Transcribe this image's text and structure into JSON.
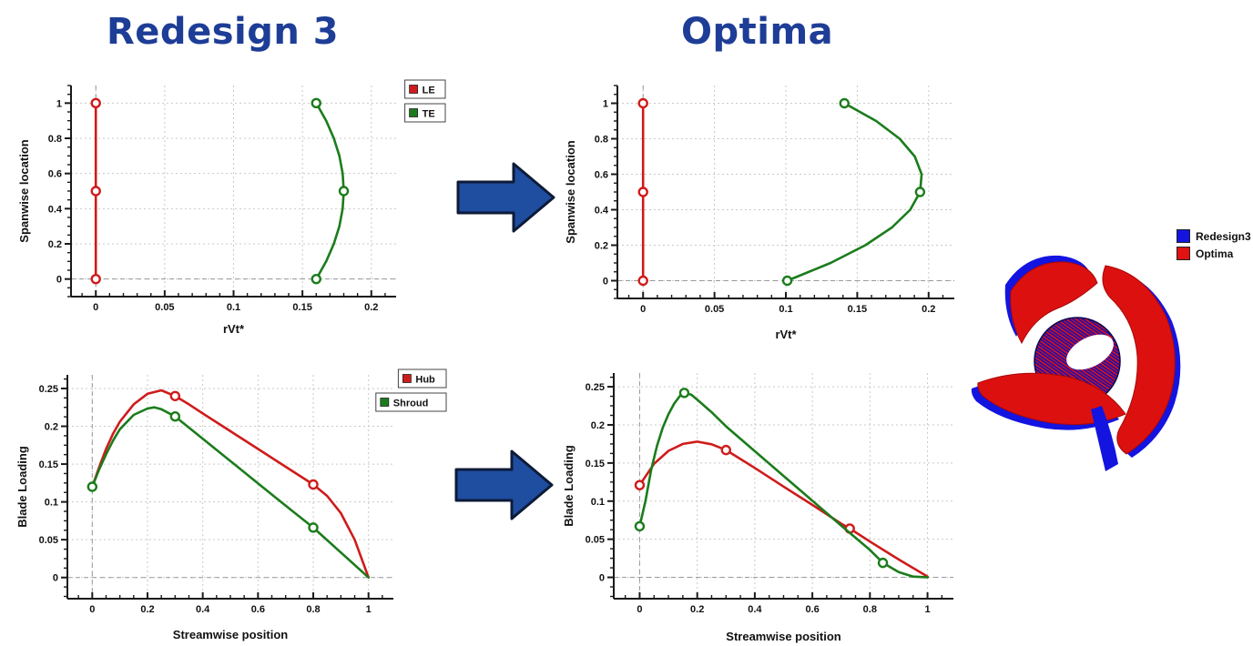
{
  "titles": {
    "left": "Redesign 3",
    "right": "Optima",
    "color": "#1d3d96"
  },
  "arrows": {
    "fill": "#1f4da0",
    "stroke": "#0d1b38"
  },
  "chart_style": {
    "axis_color": "#1a1a1a",
    "grid_dot_color": "#c9c9c9",
    "grid_dash_color": "#999999",
    "tick_label_color": "#111111",
    "marker_fill": "#ffffff",
    "legend_border": "#444444",
    "legend_bg": "#ffffff"
  },
  "chart_data": [
    {
      "id": "redesign3-spanwise",
      "type": "line",
      "title": "",
      "xlabel": "rVt*",
      "ylabel": "Spanwise location",
      "xlim": [
        -0.018,
        0.218
      ],
      "ylim": [
        -0.1,
        1.1
      ],
      "xticks": {
        "major": [
          0,
          0.05,
          0.1,
          0.15,
          0.2
        ],
        "labels": [
          "0",
          "0.05",
          "0.1",
          "0.15",
          "0.2"
        ],
        "minor_step": 0.01
      },
      "yticks": {
        "major": [
          0,
          0.2,
          0.4,
          0.6,
          0.8,
          1
        ],
        "labels": [
          "0",
          "0.2",
          "0.4",
          "0.6",
          "0.8",
          "1"
        ],
        "minor_step": 0.05
      },
      "dashed_x": [
        0
      ],
      "dashed_y": [
        0
      ],
      "legend": [
        {
          "label": "LE",
          "color": "#cf1b1b"
        },
        {
          "label": "TE",
          "color": "#1b7c1b"
        }
      ],
      "series": [
        {
          "name": "LE",
          "color": "#cf1b1b",
          "curve": [
            [
              0,
              0
            ],
            [
              0,
              0.5
            ],
            [
              0,
              1
            ]
          ],
          "markers": [
            [
              0,
              0
            ],
            [
              0,
              0.5
            ],
            [
              0,
              1
            ]
          ]
        },
        {
          "name": "TE",
          "color": "#1b7c1b",
          "curve": [
            [
              0.16,
              0
            ],
            [
              0.1672,
              0.1
            ],
            [
              0.1728,
              0.2
            ],
            [
              0.1768,
              0.3
            ],
            [
              0.1792,
              0.4
            ],
            [
              0.18,
              0.5
            ],
            [
              0.1792,
              0.6
            ],
            [
              0.1768,
              0.7
            ],
            [
              0.1728,
              0.8
            ],
            [
              0.1672,
              0.9
            ],
            [
              0.16,
              1
            ]
          ],
          "markers": [
            [
              0.16,
              0
            ],
            [
              0.18,
              0.5
            ],
            [
              0.16,
              1
            ]
          ]
        }
      ]
    },
    {
      "id": "optima-spanwise",
      "type": "line",
      "title": "",
      "xlabel": "rVt*",
      "ylabel": "Spanwise location",
      "xlim": [
        -0.018,
        0.218
      ],
      "ylim": [
        -0.1,
        1.1
      ],
      "xticks": {
        "major": [
          0,
          0.05,
          0.1,
          0.15,
          0.2
        ],
        "labels": [
          "0",
          "0.05",
          "0.1",
          "0.15",
          "0.2"
        ],
        "minor_step": 0.01
      },
      "yticks": {
        "major": [
          0,
          0.2,
          0.4,
          0.6,
          0.8,
          1
        ],
        "labels": [
          "0",
          "0.2",
          "0.4",
          "0.6",
          "0.8",
          "1"
        ],
        "minor_step": 0.05
      },
      "dashed_x": [
        0
      ],
      "dashed_y": [
        0
      ],
      "legend": null,
      "series": [
        {
          "name": "LE",
          "color": "#cf1b1b",
          "curve": [
            [
              0,
              0
            ],
            [
              0,
              0.5
            ],
            [
              0,
              1
            ]
          ],
          "markers": [
            [
              0,
              0
            ],
            [
              0,
              0.5
            ],
            [
              0,
              1
            ]
          ]
        },
        {
          "name": "TE",
          "color": "#1b7c1b",
          "curve": [
            [
              0.101,
              0
            ],
            [
              0.1313,
              0.1
            ],
            [
              0.1557,
              0.2
            ],
            [
              0.1743,
              0.3
            ],
            [
              0.1871,
              0.4
            ],
            [
              0.194,
              0.5
            ],
            [
              0.1951,
              0.6
            ],
            [
              0.1903,
              0.7
            ],
            [
              0.1797,
              0.8
            ],
            [
              0.1633,
              0.9
            ],
            [
              0.141,
              1
            ]
          ],
          "markers": [
            [
              0.101,
              0
            ],
            [
              0.194,
              0.5
            ],
            [
              0.141,
              1
            ]
          ]
        }
      ]
    },
    {
      "id": "redesign3-loading",
      "type": "line",
      "title": "",
      "xlabel": "Streamwise position",
      "ylabel": "Blade Loading",
      "xlim": [
        -0.09,
        1.09
      ],
      "ylim": [
        -0.028,
        0.268
      ],
      "xticks": {
        "major": [
          0,
          0.2,
          0.4,
          0.6,
          0.8,
          1
        ],
        "labels": [
          "0",
          "0.2",
          "0.4",
          "0.6",
          "0.8",
          "1"
        ],
        "minor_step": 0.05
      },
      "yticks": {
        "major": [
          0,
          0.05,
          0.1,
          0.15,
          0.2,
          0.25
        ],
        "labels": [
          "0",
          "0.05",
          "0.1",
          "0.15",
          "0.2",
          "0.25"
        ],
        "minor_step": 0.0125
      },
      "dashed_x": [
        0
      ],
      "dashed_y": [
        0
      ],
      "legend": [
        {
          "label": "Hub",
          "color": "#cf1b1b"
        },
        {
          "label": "Shroud",
          "color": "#1b7c1b"
        }
      ],
      "series": [
        {
          "name": "Hub",
          "color": "#cf1b1b",
          "curve": [
            [
              0,
              0.12
            ],
            [
              0.025,
              0.146
            ],
            [
              0.05,
              0.17
            ],
            [
              0.075,
              0.19
            ],
            [
              0.1,
              0.206
            ],
            [
              0.15,
              0.229
            ],
            [
              0.2,
              0.243
            ],
            [
              0.25,
              0.2475
            ],
            [
              0.3,
              0.24
            ],
            [
              0.35,
              0.229
            ],
            [
              0.4,
              0.217
            ],
            [
              0.5,
              0.1935
            ],
            [
              0.6,
              0.17
            ],
            [
              0.7,
              0.1465
            ],
            [
              0.8,
              0.123
            ],
            [
              0.85,
              0.108
            ],
            [
              0.9,
              0.085
            ],
            [
              0.95,
              0.05
            ],
            [
              1,
              0
            ]
          ],
          "markers": [
            [
              0.3,
              0.24
            ],
            [
              0.8,
              0.123
            ]
          ]
        },
        {
          "name": "Shroud",
          "color": "#1b7c1b",
          "curve": [
            [
              0,
              0.12
            ],
            [
              0.025,
              0.143
            ],
            [
              0.05,
              0.163
            ],
            [
              0.075,
              0.181
            ],
            [
              0.1,
              0.196
            ],
            [
              0.15,
              0.215
            ],
            [
              0.2,
              0.2235
            ],
            [
              0.225,
              0.225
            ],
            [
              0.25,
              0.2225
            ],
            [
              0.3,
              0.213
            ],
            [
              0.4,
              0.1835
            ],
            [
              0.5,
              0.154
            ],
            [
              0.6,
              0.1245
            ],
            [
              0.7,
              0.095
            ],
            [
              0.8,
              0.066
            ],
            [
              0.9,
              0.033
            ],
            [
              1,
              0
            ]
          ],
          "markers": [
            [
              0,
              0.12
            ],
            [
              0.3,
              0.213
            ],
            [
              0.8,
              0.066
            ]
          ]
        }
      ]
    },
    {
      "id": "optima-loading",
      "type": "line",
      "title": "",
      "xlabel": "Streamwise position",
      "ylabel": "Blade Loading",
      "xlim": [
        -0.09,
        1.09
      ],
      "ylim": [
        -0.028,
        0.268
      ],
      "xticks": {
        "major": [
          0,
          0.2,
          0.4,
          0.6,
          0.8,
          1
        ],
        "labels": [
          "0",
          "0.2",
          "0.4",
          "0.6",
          "0.8",
          "1"
        ],
        "minor_step": 0.05
      },
      "yticks": {
        "major": [
          0,
          0.05,
          0.1,
          0.15,
          0.2,
          0.25
        ],
        "labels": [
          "0",
          "0.05",
          "0.1",
          "0.15",
          "0.2",
          "0.25"
        ],
        "minor_step": 0.0125
      },
      "dashed_x": [
        0
      ],
      "dashed_y": [
        0
      ],
      "legend": null,
      "series": [
        {
          "name": "Hub",
          "color": "#cf1b1b",
          "curve": [
            [
              0,
              0.121
            ],
            [
              0.05,
              0.149
            ],
            [
              0.1,
              0.166
            ],
            [
              0.15,
              0.175
            ],
            [
              0.2,
              0.178
            ],
            [
              0.25,
              0.1745
            ],
            [
              0.3,
              0.167
            ],
            [
              0.4,
              0.1435
            ],
            [
              0.5,
              0.119
            ],
            [
              0.6,
              0.095
            ],
            [
              0.7,
              0.0705
            ],
            [
              0.73,
              0.064
            ],
            [
              0.8,
              0.047
            ],
            [
              0.9,
              0.0235
            ],
            [
              1,
              0.001
            ]
          ],
          "markers": [
            [
              0,
              0.121
            ],
            [
              0.3,
              0.167
            ],
            [
              0.73,
              0.064
            ]
          ]
        },
        {
          "name": "Shroud",
          "color": "#1b7c1b",
          "curve": [
            [
              0,
              0.067
            ],
            [
              0.02,
              0.1
            ],
            [
              0.04,
              0.141
            ],
            [
              0.06,
              0.172
            ],
            [
              0.08,
              0.196
            ],
            [
              0.1,
              0.214
            ],
            [
              0.12,
              0.228
            ],
            [
              0.14,
              0.238
            ],
            [
              0.155,
              0.242
            ],
            [
              0.18,
              0.2395
            ],
            [
              0.2,
              0.233
            ],
            [
              0.25,
              0.2165
            ],
            [
              0.3,
              0.198
            ],
            [
              0.4,
              0.1655
            ],
            [
              0.5,
              0.133
            ],
            [
              0.6,
              0.1005
            ],
            [
              0.7,
              0.068
            ],
            [
              0.8,
              0.036
            ],
            [
              0.845,
              0.019
            ],
            [
              0.9,
              0.007
            ],
            [
              0.95,
              0.001
            ],
            [
              1,
              0
            ]
          ],
          "markers": [
            [
              0,
              0.067
            ],
            [
              0.155,
              0.242
            ],
            [
              0.845,
              0.019
            ]
          ]
        }
      ]
    }
  ],
  "impeller": {
    "legend": [
      {
        "label": "Redesign3",
        "color": "#1414e0"
      },
      {
        "label": "Optima",
        "color": "#e01212"
      }
    ],
    "colors": {
      "redesign3": "#1414e0",
      "optima": "#dd1010",
      "optima_edge": "#a80808",
      "hub_base": "#0d0dc0",
      "hub_hatch": "#d81414",
      "hub_edge": "#0a0a50"
    }
  }
}
